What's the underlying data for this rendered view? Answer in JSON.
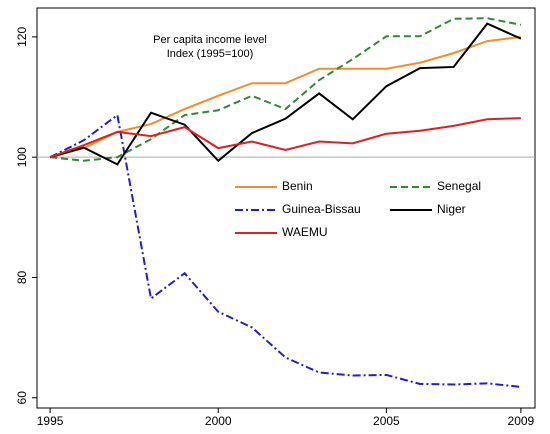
{
  "chart_data": {
    "type": "line",
    "annotation": [
      "Per capita income level",
      "Index (1995=100)"
    ],
    "x": [
      1995,
      1996,
      1997,
      1998,
      1999,
      2000,
      2001,
      2002,
      2003,
      2004,
      2005,
      2006,
      2007,
      2008,
      2009
    ],
    "series": [
      {
        "name": "Benin",
        "color": "#f28e2b",
        "dash": "solid",
        "values": [
          100,
          101.5,
          104.2,
          105.5,
          108,
          110.2,
          112.3,
          112.3,
          114.7,
          114.7,
          114.7,
          115.7,
          117.3,
          119.3,
          120
        ]
      },
      {
        "name": "Senegal",
        "color": "#2e8b2e",
        "dash": "dashed",
        "values": [
          100,
          99.4,
          100,
          103,
          107,
          107.8,
          110.2,
          108,
          112.8,
          116.3,
          120.1,
          120.1,
          123,
          123.1,
          122
        ]
      },
      {
        "name": "Guinea-Bissau",
        "color": "#1f1fd0",
        "dash": "dashdot",
        "values": [
          100,
          102.8,
          107,
          76.5,
          80.7,
          74.3,
          71.7,
          66.7,
          64.2,
          63.7,
          63.8,
          62.3,
          62.2,
          62.4,
          61.8
        ]
      },
      {
        "name": "Niger",
        "color": "#000000",
        "dash": "solid",
        "values": [
          100,
          101.6,
          98.8,
          107.4,
          105.4,
          99.4,
          104,
          106.4,
          110.6,
          106.3,
          111.8,
          114.8,
          115,
          122.2,
          119.7
        ]
      },
      {
        "name": "WAEMU",
        "color": "#e02020",
        "dash": "solid",
        "values": [
          100,
          102,
          104.2,
          103.5,
          105,
          101.5,
          102.6,
          101.2,
          102.6,
          102.3,
          103.9,
          104.4,
          105.2,
          106.3,
          106.5
        ]
      }
    ],
    "xlim": [
      1994.61,
      2009.42
    ],
    "xticks": [
      1995,
      2000,
      2005,
      2009
    ],
    "ylim": [
      58.3,
      124.8
    ],
    "yticks": [
      60,
      80,
      100,
      120
    ],
    "refline": 100,
    "grid": false
  }
}
